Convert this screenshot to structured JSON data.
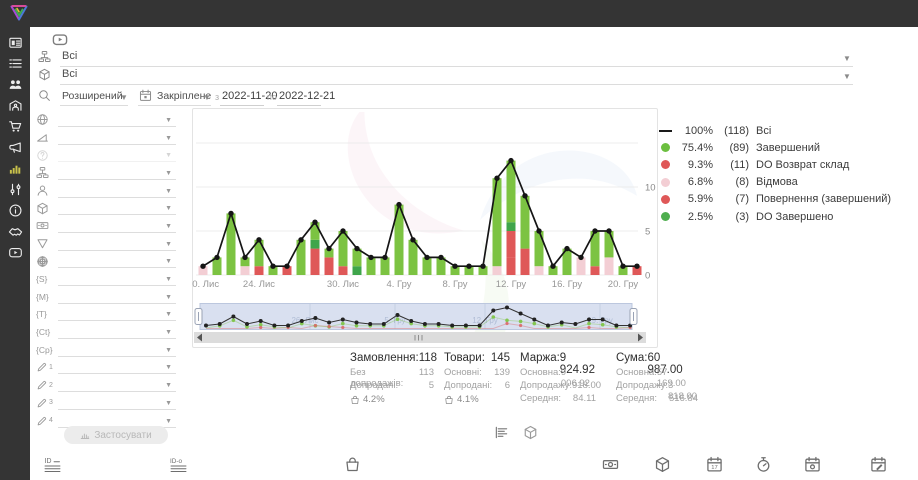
{
  "brand": {
    "logo": "triangle-logo"
  },
  "sidebar": {
    "active_color": "#c9c24b",
    "items": [
      {
        "icon": "dashboard",
        "active": false
      },
      {
        "icon": "orders",
        "active": false
      },
      {
        "icon": "clients",
        "active": false
      },
      {
        "icon": "warehouse",
        "active": false
      },
      {
        "icon": "cart",
        "active": false
      },
      {
        "icon": "megaphone",
        "active": false
      },
      {
        "icon": "analytics",
        "active": true
      },
      {
        "icon": "sliders",
        "active": false
      },
      {
        "icon": "info",
        "active": false
      },
      {
        "icon": "partners",
        "active": false
      },
      {
        "icon": "video",
        "active": false
      }
    ]
  },
  "header_filters": {
    "video_button_icon": "play-video",
    "rows": [
      {
        "icon": "hierarchy",
        "value": "Всі"
      },
      {
        "icon": "package",
        "value": "Всі"
      }
    ],
    "search": {
      "icon": "search",
      "mode": "Розширений"
    },
    "period": {
      "icon": "calendar",
      "mode": "Закріплене",
      "from_label": "з",
      "from": "2022-11-20",
      "to_label": "по",
      "to": "2022-12-21"
    }
  },
  "filter_panel": {
    "rows": [
      {
        "icon": "globe"
      },
      {
        "icon": "ramp"
      },
      {
        "icon": "question",
        "disabled": true
      },
      {
        "icon": "hierarchy"
      },
      {
        "icon": "person"
      },
      {
        "icon": "package"
      },
      {
        "icon": "banknote"
      },
      {
        "icon": "funnel"
      },
      {
        "icon": "globe-grid"
      },
      {
        "text": "{S}"
      },
      {
        "text": "{M}"
      },
      {
        "text": "{T}"
      },
      {
        "text": "{Ct}"
      },
      {
        "text": "{Cp}"
      },
      {
        "icon": "pencil",
        "sub": "1"
      },
      {
        "icon": "pencil",
        "sub": "2"
      },
      {
        "icon": "pencil",
        "sub": "3"
      },
      {
        "icon": "pencil",
        "sub": "4"
      }
    ],
    "apply_button": {
      "label": "Застосувати",
      "disabled": true
    }
  },
  "chart_data": {
    "type": "stacked-bar+line",
    "title": "",
    "dates": [
      "2022-11-20",
      "2022-11-21",
      "2022-11-22",
      "2022-11-23",
      "2022-11-24",
      "2022-11-25",
      "2022-11-26",
      "2022-11-27",
      "2022-11-28",
      "2022-11-29",
      "2022-11-30",
      "2022-12-01",
      "2022-12-02",
      "2022-12-03",
      "2022-12-04",
      "2022-12-05",
      "2022-12-06",
      "2022-12-07",
      "2022-12-08",
      "2022-12-09",
      "2022-12-10",
      "2022-12-11",
      "2022-12-12",
      "2022-12-13",
      "2022-12-14",
      "2022-12-15",
      "2022-12-16",
      "2022-12-17",
      "2022-12-18",
      "2022-12-19",
      "2022-12-20",
      "2022-12-21"
    ],
    "series": [
      {
        "name": "Відмова",
        "color": "#f3ced4",
        "values": [
          1,
          0,
          0,
          1,
          0,
          0,
          0,
          0,
          0,
          0,
          0,
          0,
          0,
          0,
          0,
          0,
          0,
          0,
          0,
          0,
          0,
          1,
          0,
          0,
          1,
          0,
          0,
          2,
          0,
          2,
          0,
          0
        ]
      },
      {
        "name": "DO Возврат склад",
        "color": "#df5858",
        "values": [
          0,
          0,
          0,
          0,
          1,
          0,
          1,
          0,
          3,
          2,
          1,
          0,
          0,
          0,
          0,
          0,
          0,
          0,
          0,
          0,
          0,
          0,
          2,
          0,
          0,
          0,
          0,
          0,
          1,
          0,
          0,
          0
        ]
      },
      {
        "name": "Повернення (завершений)",
        "color": "#df5858",
        "values": [
          0,
          0,
          0,
          0,
          0,
          0,
          0,
          0,
          0,
          0,
          0,
          0,
          0,
          0,
          0,
          0,
          0,
          0,
          0,
          0,
          0,
          0,
          3,
          3,
          0,
          0,
          0,
          0,
          0,
          0,
          0,
          1
        ]
      },
      {
        "name": "DO Завершено",
        "color": "#3fa54b",
        "values": [
          0,
          0,
          0,
          0,
          0,
          0,
          0,
          0,
          1,
          0,
          0,
          1,
          0,
          0,
          0,
          0,
          0,
          0,
          0,
          0,
          0,
          0,
          1,
          0,
          0,
          0,
          0,
          0,
          0,
          0,
          0,
          0
        ]
      },
      {
        "name": "Завершений",
        "color": "#7cc342",
        "values": [
          0,
          2,
          7,
          1,
          3,
          1,
          0,
          4,
          2,
          1,
          4,
          2,
          2,
          2,
          8,
          4,
          2,
          2,
          1,
          1,
          1,
          10,
          7,
          6,
          4,
          1,
          3,
          0,
          4,
          3,
          1,
          0
        ]
      }
    ],
    "line": {
      "name": "Всі",
      "color": "#151515",
      "values": [
        1,
        2,
        7,
        2,
        4,
        1,
        1,
        4,
        6,
        3,
        5,
        3,
        2,
        2,
        8,
        4,
        2,
        2,
        1,
        1,
        1,
        11,
        13,
        9,
        5,
        1,
        3,
        2,
        5,
        5,
        1,
        1
      ]
    },
    "y_ticks": [
      0,
      5,
      10
    ],
    "ylim": [
      0,
      15
    ],
    "x_ticks": [
      {
        "index": 0,
        "label": "20. Лис"
      },
      {
        "index": 4,
        "label": "24. Лис"
      },
      {
        "index": 10,
        "label": "30. Лис"
      },
      {
        "index": 14,
        "label": "4. Гру"
      },
      {
        "index": 18,
        "label": "8. Гру"
      },
      {
        "index": 22,
        "label": "12. Гру"
      },
      {
        "index": 26,
        "label": "16. Гру"
      },
      {
        "index": 30,
        "label": "20. Гру"
      }
    ],
    "navigator_labels": [
      "26. Лис",
      "5. Гру",
      "12. Гру",
      "19. Гру"
    ]
  },
  "legend": [
    {
      "marker": "line",
      "color": "#1a1a1a",
      "pct": "100%",
      "count": "(118)",
      "label": "Всі"
    },
    {
      "marker": "dot",
      "color": "#6cbf40",
      "pct": "75.4%",
      "count": "(89)",
      "label": "Завершений"
    },
    {
      "marker": "dot",
      "color": "#df5858",
      "pct": "9.3%",
      "count": "(11)",
      "label": "DO Возврат склад"
    },
    {
      "marker": "dot",
      "color": "#f3ced4",
      "pct": "6.8%",
      "count": "(8)",
      "label": "Відмова"
    },
    {
      "marker": "dot",
      "color": "#df5858",
      "pct": "5.9%",
      "count": "(7)",
      "label": "Повернення (завершений)"
    },
    {
      "marker": "dot",
      "color": "#4fae4f",
      "pct": "2.5%",
      "count": "(3)",
      "label": "DO Завершено"
    }
  ],
  "stats": {
    "columns": [
      {
        "title": "Замовлення:",
        "value": "118",
        "rows": [
          {
            "label": "Без допродажів:",
            "value": "113"
          },
          {
            "label": "Допродані:",
            "value": "5"
          }
        ],
        "badge": "4.2%"
      },
      {
        "title": "Товари:",
        "value": "145",
        "rows": [
          {
            "label": "Основні:",
            "value": "139"
          },
          {
            "label": "Допродані:",
            "value": "6"
          }
        ],
        "badge": "4.1%"
      },
      {
        "title": "Маржа:",
        "value": "9 924.92",
        "rows": [
          {
            "label": "Основна:",
            "value": "9 006.92"
          },
          {
            "label": "Допродажу:",
            "value": "918.00"
          },
          {
            "label": "Середня:",
            "value": "84.11"
          }
        ]
      },
      {
        "title": "Сума:",
        "value": "60 987.00",
        "rows": [
          {
            "label": "Основна:",
            "value": "57 169.00"
          },
          {
            "label": "Допродажу:",
            "value": "3 818.00"
          },
          {
            "label": "Середня:",
            "value": "516.84"
          }
        ]
      }
    ]
  },
  "view_toggles": [
    {
      "icon": "list-view"
    },
    {
      "icon": "package"
    }
  ],
  "table_header_icons": [
    "id-list",
    "id-o-list",
    "bag",
    "banknote",
    "package",
    "calendar-date",
    "stopwatch",
    "calendar-pin",
    "calendar-edit"
  ]
}
